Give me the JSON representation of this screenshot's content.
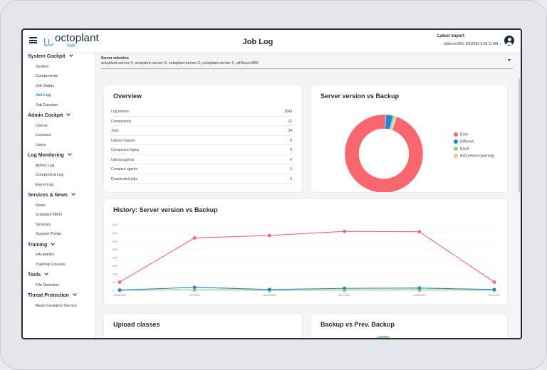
{
  "header": {
    "logo_text": "octoplant",
    "logo_sub": "hub",
    "page_title": "Job Log",
    "import_label": "Latest import",
    "import_value": "vdServer950: 4/5/2022 5:09:11 AM"
  },
  "sidebar": {
    "sections": [
      {
        "label": "System Cockpit",
        "items": [
          "System",
          "Components",
          "Job Status",
          "Job Log",
          "Job Duration"
        ]
      },
      {
        "label": "Admin Cockpit",
        "items": [
          "Clients",
          "Licenses",
          "Users"
        ]
      },
      {
        "label": "Log Monitoring",
        "items": [
          "Admin Log",
          "Component Log",
          "Event Log"
        ]
      },
      {
        "label": "Services & News",
        "items": [
          "News",
          "octoplant INFO",
          "Services",
          "Support Portal"
        ]
      },
      {
        "label": "Training",
        "items": [
          "eAcademy",
          "Training Courses"
        ]
      },
      {
        "label": "Tools",
        "items": [
          "File Detective"
        ]
      },
      {
        "label": "Threat Protection",
        "items": [
          "Asset Inventory Service"
        ]
      }
    ],
    "active_item": "Job Log"
  },
  "server_selection": {
    "label": "Server selection",
    "value": "octoplant-server-4, octoplant-server-3, octoplant-server-2, octoplant-server-1, vdServer950"
  },
  "overview": {
    "title": "Overview",
    "rows": [
      {
        "label": "Log entries",
        "value": "1543"
      },
      {
        "label": "Components",
        "value": "22"
      },
      {
        "label": "Jobs",
        "value": "34"
      },
      {
        "label": "Upload classes",
        "value": "8"
      },
      {
        "label": "Component types",
        "value": "9"
      },
      {
        "label": "Upload agents",
        "value": "4"
      },
      {
        "label": "Compare agents",
        "value": "3"
      },
      {
        "label": "Deactivated jobs",
        "value": "0"
      }
    ]
  },
  "cards": {
    "server_vs_backup_title": "Server version vs Backup",
    "history_title": "History: Server version vs Backup",
    "upload_classes_title": "Upload classes",
    "backup_vs_prev_title": "Backup vs Prev. Backup"
  },
  "chart_data": [
    {
      "type": "pie",
      "title": "Server version vs Backup",
      "labels": [
        "Error",
        "Different",
        "Equal",
        "Not present (warning)"
      ],
      "values": [
        95.5,
        3.0,
        0.8,
        0.7
      ],
      "colors": [
        "#f7676d",
        "#1e88d4",
        "#8fc99a",
        "#f4c983"
      ],
      "donut": true,
      "legend": "right"
    },
    {
      "type": "line",
      "title": "History: Server version vs Backup",
      "x": [
        "2/28/2022",
        "3/7/2022",
        "3/14/2022",
        "3/21/2022",
        "3/28/2022",
        "4/4/2022"
      ],
      "ylim": [
        0,
        400
      ],
      "yticks": [
        0,
        50,
        100,
        150,
        200,
        250,
        300,
        350,
        400
      ],
      "series": [
        {
          "name": "Error",
          "color": "#f7676d",
          "values": [
            50,
            320,
            335,
            360,
            358,
            50
          ]
        },
        {
          "name": "Different",
          "color": "#1e88d4",
          "values": [
            2,
            18,
            5,
            12,
            14,
            5
          ]
        },
        {
          "name": "Equal",
          "color": "#8fc99a",
          "values": [
            1,
            3,
            1,
            2,
            3,
            2
          ]
        },
        {
          "name": "Not present (warning)",
          "color": "#f4c983",
          "values": [
            0,
            2,
            0,
            1,
            1,
            0
          ]
        }
      ],
      "grid": true
    }
  ]
}
